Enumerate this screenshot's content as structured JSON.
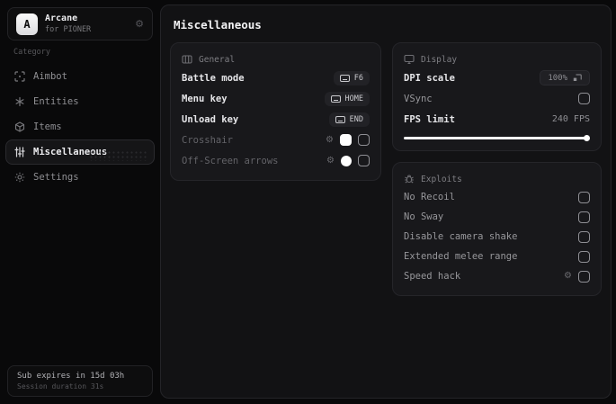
{
  "app": {
    "name": "Arcane",
    "subtitle": "for PIONER",
    "logo_letter": "A"
  },
  "colors": {
    "accent": "#ffffff",
    "panel_bg": "#121214",
    "card_bg": "#18181b"
  },
  "sidebar": {
    "category_label": "Category",
    "items": [
      {
        "label": "Aimbot",
        "icon": "crosshair-scan-icon",
        "active": false
      },
      {
        "label": "Entities",
        "icon": "asterisk-icon",
        "active": false
      },
      {
        "label": "Items",
        "icon": "cube-icon",
        "active": false
      },
      {
        "label": "Miscellaneous",
        "icon": "sliders-icon",
        "active": true
      },
      {
        "label": "Settings",
        "icon": "gear-icon",
        "active": false
      }
    ],
    "footer": {
      "line1": "Sub expires in 15d 03h",
      "line2": "Session duration 31s"
    }
  },
  "main": {
    "title": "Miscellaneous",
    "general": {
      "title": "General",
      "battle_mode": {
        "label": "Battle mode",
        "key": "F6"
      },
      "menu_key": {
        "label": "Menu key",
        "key": "HOME"
      },
      "unload_key": {
        "label": "Unload key",
        "key": "END"
      },
      "crosshair": {
        "label": "Crosshair",
        "swatch_color": "#ffffff",
        "checked": false
      },
      "offscreen_arrows": {
        "label": "Off-Screen arrows",
        "swatch_color": "#ffffff",
        "checked": false
      }
    },
    "display": {
      "title": "Display",
      "dpi_scale": {
        "label": "DPI scale",
        "value": "100%"
      },
      "vsync": {
        "label": "VSync",
        "checked": false
      },
      "fps_limit": {
        "label": "FPS limit",
        "value": "240 FPS",
        "slider_percent": 99
      }
    },
    "exploits": {
      "title": "Exploits",
      "items": [
        {
          "label": "No Recoil",
          "checked": false
        },
        {
          "label": "No Sway",
          "checked": false
        },
        {
          "label": "Disable camera shake",
          "checked": false
        },
        {
          "label": "Extended melee range",
          "checked": false
        },
        {
          "label": "Speed hack",
          "checked": false,
          "has_settings": true
        }
      ]
    }
  },
  "icons": {
    "gear_glyph": "⚙"
  }
}
